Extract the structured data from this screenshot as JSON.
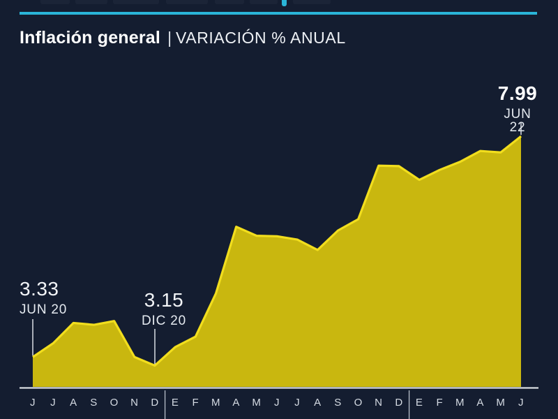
{
  "colors": {
    "background": "#141d30",
    "accent_cyan": "#2ab5d8",
    "area_fill": "#c9b70f",
    "area_stroke": "#f2de1d",
    "axis_line": "#eef1f4",
    "separator_line": "#b9c1cb",
    "text_primary": "#ffffff",
    "text_secondary": "#d5dbe3"
  },
  "header": {
    "title": "Inflación general",
    "divider": "|",
    "subtitle": "VARIACIÓN % ANUAL"
  },
  "chart_data": {
    "type": "area",
    "title": "Inflación general",
    "ylabel": "Variación % anual",
    "xlabel": "",
    "legend_position": "none",
    "grid": false,
    "ylim": [
      2.7,
      8.7
    ],
    "categories": [
      "J",
      "J",
      "A",
      "S",
      "O",
      "N",
      "D",
      "E",
      "F",
      "M",
      "A",
      "M",
      "J",
      "J",
      "A",
      "S",
      "O",
      "N",
      "D",
      "E",
      "F",
      "M",
      "A",
      "M",
      "J"
    ],
    "x_range": [
      "JUN 20",
      "JUN 22"
    ],
    "values": [
      3.33,
      3.62,
      4.05,
      4.01,
      4.09,
      3.33,
      3.15,
      3.54,
      3.76,
      4.67,
      6.08,
      5.89,
      5.88,
      5.81,
      5.59,
      6.0,
      6.24,
      7.37,
      7.36,
      7.07,
      7.28,
      7.45,
      7.68,
      7.65,
      7.99
    ],
    "year_separators_between_indices": [
      [
        6,
        7
      ],
      [
        18,
        19
      ]
    ],
    "annotations": [
      {
        "value": "3.33",
        "date": "JUN 20",
        "index": 0,
        "bold": false
      },
      {
        "value": "3.15",
        "date": "DIC 20",
        "index": 6,
        "bold": false
      },
      {
        "value": "7.99",
        "date": "JUN 22",
        "index": 24,
        "bold": true
      }
    ]
  }
}
